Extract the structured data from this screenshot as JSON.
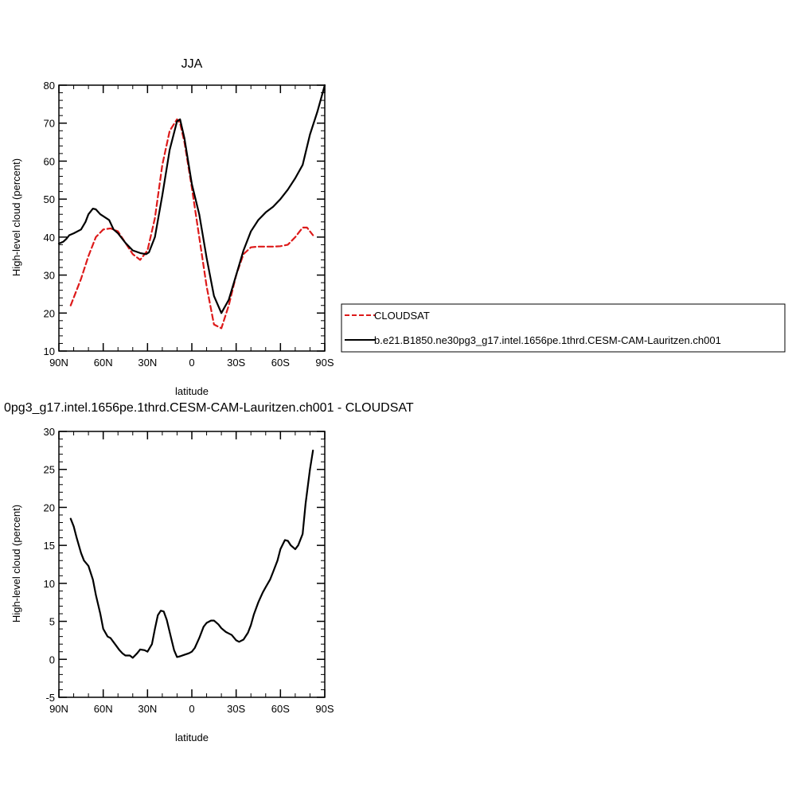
{
  "chart_data": [
    {
      "type": "line",
      "title": "JJA",
      "xlabel": "latitude",
      "ylabel": "High-level cloud (percent)",
      "xlim": [
        90,
        -90
      ],
      "ylim": [
        10,
        80
      ],
      "x_tick_values": [
        90,
        60,
        30,
        0,
        -30,
        -60,
        -90
      ],
      "x_tick_labels": [
        "90N",
        "60N",
        "30N",
        "0",
        "30S",
        "60S",
        "90S"
      ],
      "y_tick_labels": [
        "10",
        "20",
        "30",
        "40",
        "50",
        "60",
        "70",
        "80"
      ],
      "legend_position": "right",
      "series": [
        {
          "name": "CLOUDSAT",
          "color": "#dd1a1a",
          "dash": "dashed",
          "x": [
            82,
            75,
            70,
            65,
            60,
            55,
            50,
            45,
            40,
            35,
            30,
            25,
            20,
            15,
            10,
            8,
            5,
            0,
            -5,
            -10,
            -15,
            -20,
            -25,
            -30,
            -35,
            -40,
            -45,
            -50,
            -55,
            -60,
            -65,
            -70,
            -75,
            -78,
            -82
          ],
          "y": [
            22,
            29,
            35,
            40,
            42,
            42.3,
            41.5,
            38.5,
            35.5,
            34,
            36.5,
            45,
            59,
            68,
            71,
            70,
            65,
            53,
            40,
            27,
            17,
            16,
            22,
            30,
            35.5,
            37.3,
            37.5,
            37.5,
            37.5,
            37.6,
            38,
            40,
            42.5,
            42.5,
            40.5
          ]
        },
        {
          "name": "b.e21.B1850.ne30pg3_g17.intel.1656pe.1thrd.CESM-CAM-Lauritzen.ch001",
          "color": "#000000",
          "dash": "solid",
          "x": [
            90,
            87,
            85,
            83,
            80,
            75,
            72,
            70,
            67,
            65,
            62,
            60,
            56,
            53,
            50,
            45,
            40,
            35,
            31,
            29,
            25,
            20,
            15,
            10,
            8,
            5,
            0,
            -5,
            -10,
            -15,
            -20,
            -25,
            -30,
            -35,
            -40,
            -45,
            -50,
            -55,
            -60,
            -65,
            -70,
            -75,
            -80,
            -85,
            -90
          ],
          "y": [
            38.3,
            38.8,
            39.5,
            40.5,
            41,
            42,
            44,
            46,
            47.5,
            47.3,
            46,
            45.5,
            44.5,
            42,
            41,
            38.5,
            36.5,
            35.8,
            35.5,
            36,
            40,
            51,
            63,
            70.5,
            71,
            66,
            54,
            46,
            34.5,
            24.5,
            20,
            23.5,
            30,
            36.5,
            41.5,
            44.5,
            46.5,
            48,
            50,
            52.5,
            55.5,
            59,
            67,
            73,
            80
          ]
        }
      ]
    },
    {
      "type": "line",
      "title": "0pg3_g17.intel.1656pe.1thrd.CESM-CAM-Lauritzen.ch001 - CLOUDSAT",
      "xlabel": "latitude",
      "ylabel": "High-level cloud (percent)",
      "xlim": [
        90,
        -90
      ],
      "ylim": [
        -5,
        30
      ],
      "x_tick_values": [
        90,
        60,
        30,
        0,
        -30,
        -60,
        -90
      ],
      "x_tick_labels": [
        "90N",
        "60N",
        "30N",
        "0",
        "30S",
        "60S",
        "90S"
      ],
      "y_tick_labels": [
        "-5",
        "0",
        "5",
        "10",
        "15",
        "20",
        "25",
        "30"
      ],
      "series": [
        {
          "color": "#000000",
          "dash": "solid",
          "x": [
            82,
            80,
            78,
            75,
            73,
            70,
            67,
            65,
            62,
            60,
            57,
            55,
            52,
            49,
            47,
            45,
            42,
            40,
            37,
            35,
            32,
            30,
            27,
            25,
            23,
            21,
            19,
            17,
            14,
            12,
            10,
            8,
            5,
            2,
            0,
            -2,
            -5,
            -8,
            -10,
            -13,
            -15,
            -18,
            -20,
            -23,
            -25,
            -27,
            -30,
            -32,
            -35,
            -38,
            -40,
            -42,
            -45,
            -48,
            -50,
            -53,
            -55,
            -58,
            -60,
            -63,
            -65,
            -67,
            -70,
            -72,
            -75,
            -77,
            -80,
            -82
          ],
          "y": [
            18.5,
            17.5,
            16,
            14,
            13,
            12.3,
            10.5,
            8.5,
            6,
            4,
            3,
            2.8,
            2,
            1.2,
            0.8,
            0.5,
            0.5,
            0.2,
            0.8,
            1.3,
            1.2,
            1,
            2,
            4,
            5.8,
            6.4,
            6.3,
            5.2,
            2.8,
            1.2,
            0.3,
            0.4,
            0.6,
            0.8,
            1,
            1.5,
            2.8,
            4.3,
            4.8,
            5.1,
            5.1,
            4.6,
            4.1,
            3.6,
            3.4,
            3.2,
            2.5,
            2.3,
            2.6,
            3.5,
            4.5,
            5.9,
            7.5,
            8.8,
            9.5,
            10.5,
            11.5,
            13,
            14.5,
            15.7,
            15.6,
            15,
            14.5,
            15,
            16.5,
            20.5,
            25,
            27.5
          ]
        }
      ]
    }
  ]
}
